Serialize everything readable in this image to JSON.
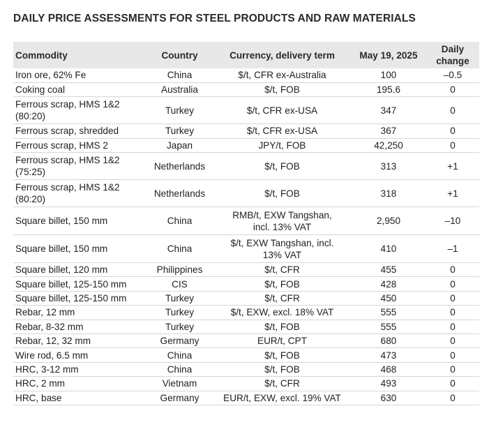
{
  "title": "DAILY PRICE ASSESSMENTS FOR STEEL PRODUCTS AND RAW MATERIALS",
  "headers": {
    "commodity": "Commodity",
    "country": "Country",
    "currency": "Currency, delivery term",
    "date": "May 19, 2025",
    "change_line1": "Daily",
    "change_line2": "change"
  },
  "rows": [
    {
      "commodity": [
        "Iron ore, 62% Fe"
      ],
      "country": "China",
      "term": [
        "$/t, CFR ex-Australia"
      ],
      "price": "100",
      "change": "–0.5"
    },
    {
      "commodity": [
        "Coking coal"
      ],
      "country": "Australia",
      "term": [
        "$/t, FOB"
      ],
      "price": "195.6",
      "change": "0"
    },
    {
      "commodity": [
        "Ferrous scrap, HMS 1&2",
        "(80:20)"
      ],
      "country": "Turkey",
      "term": [
        "$/t, CFR ex-USA"
      ],
      "price": "347",
      "change": "0"
    },
    {
      "commodity": [
        "Ferrous scrap, shredded"
      ],
      "country": "Turkey",
      "term": [
        "$/t, CFR ex-USA"
      ],
      "price": "367",
      "change": "0"
    },
    {
      "commodity": [
        "Ferrous scrap, HMS 2"
      ],
      "country": "Japan",
      "term": [
        "JPY/t, FOB"
      ],
      "price": "42,250",
      "change": "0"
    },
    {
      "commodity": [
        "Ferrous scrap, HMS 1&2",
        "(75:25)"
      ],
      "country": "Netherlands",
      "term": [
        "$/t, FOB"
      ],
      "price": "313",
      "change": "+1"
    },
    {
      "commodity": [
        "Ferrous scrap, HMS 1&2",
        "(80:20)"
      ],
      "country": "Netherlands",
      "term": [
        "$/t, FOB"
      ],
      "price": "318",
      "change": "+1"
    },
    {
      "commodity": [
        "Square billet, 150 mm"
      ],
      "country": "China",
      "term": [
        "RMB/t, EXW Tangshan,",
        "incl. 13% VAT"
      ],
      "price": "2,950",
      "change": "–10"
    },
    {
      "commodity": [
        "Square billet, 150 mm"
      ],
      "country": "China",
      "term": [
        "$/t, EXW Tangshan, incl.",
        "13% VAT"
      ],
      "price": "410",
      "change": "–1"
    },
    {
      "commodity": [
        "Square billet, 120 mm"
      ],
      "country": "Philippines",
      "term": [
        "$/t, CFR"
      ],
      "price": "455",
      "change": "0"
    },
    {
      "commodity": [
        "Square billet, 125-150 mm"
      ],
      "country": "CIS",
      "term": [
        "$/t, FOB"
      ],
      "price": "428",
      "change": "0"
    },
    {
      "commodity": [
        "Square billet, 125-150 mm"
      ],
      "country": "Turkey",
      "term": [
        "$/t, CFR"
      ],
      "price": "450",
      "change": "0"
    },
    {
      "commodity": [
        "Rebar, 12 mm"
      ],
      "country": "Turkey",
      "term": [
        "$/t, EXW, excl. 18% VAT"
      ],
      "price": "555",
      "change": "0"
    },
    {
      "commodity": [
        "Rebar, 8-32 mm"
      ],
      "country": "Turkey",
      "term": [
        "$/t, FOB"
      ],
      "price": "555",
      "change": "0"
    },
    {
      "commodity": [
        "Rebar, 12, 32 mm"
      ],
      "country": "Germany",
      "term": [
        "EUR/t, CPT"
      ],
      "price": "680",
      "change": "0"
    },
    {
      "commodity": [
        "Wire rod, 6.5 mm"
      ],
      "country": "China",
      "term": [
        "$/t, FOB"
      ],
      "price": "473",
      "change": "0"
    },
    {
      "commodity": [
        "HRC, 3-12 mm"
      ],
      "country": "China",
      "term": [
        "$/t, FOB"
      ],
      "price": "468",
      "change": "0"
    },
    {
      "commodity": [
        "HRC, 2 mm"
      ],
      "country": "Vietnam",
      "term": [
        "$/t, CFR"
      ],
      "price": "493",
      "change": "0"
    },
    {
      "commodity": [
        "HRC, base"
      ],
      "country": "Germany",
      "term": [
        "EUR/t, EXW, excl. 19% VAT"
      ],
      "price": "630",
      "change": "0"
    }
  ]
}
